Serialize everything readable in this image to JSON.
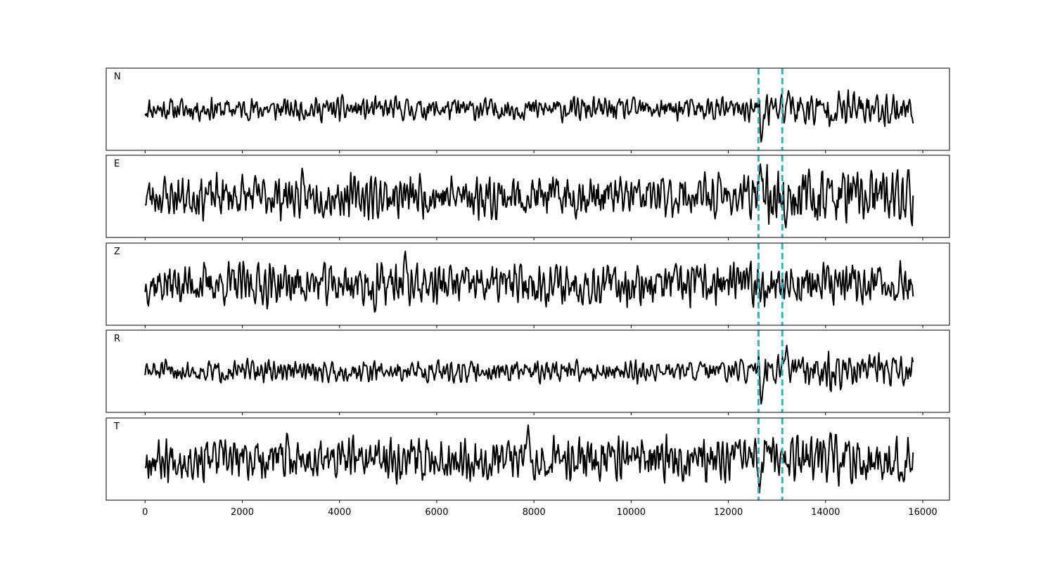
{
  "chart_data": {
    "type": "line",
    "title": "",
    "xlabel": "",
    "ylabel": "",
    "xlim": [
      -800,
      16550
    ],
    "x_ticks": [
      0,
      2000,
      4000,
      6000,
      8000,
      10000,
      12000,
      14000,
      16000
    ],
    "x_tick_labels": [
      "0",
      "2000",
      "4000",
      "6000",
      "8000",
      "10000",
      "12000",
      "14000",
      "16000"
    ],
    "x_range": [
      0,
      15800
    ],
    "trace_color": "#000000",
    "marker_color": "#17becf",
    "markers": [
      12620,
      13110
    ],
    "shared_x_axis": true,
    "y_ticks_shown": false,
    "panels": [
      {
        "label": "N",
        "seed": 11,
        "amp": 0.3,
        "spike": [
          {
            "x": 12680,
            "v": -1.0
          },
          {
            "x": 13240,
            "v": 0.55
          }
        ],
        "late_boost": 1.5
      },
      {
        "label": "E",
        "seed": 23,
        "amp": 0.55,
        "spike": [
          {
            "x": 12660,
            "v": 0.95
          },
          {
            "x": 13180,
            "v": -0.95
          }
        ],
        "late_boost": 1.3
      },
      {
        "label": "Z",
        "seed": 37,
        "amp": 0.55,
        "spike": [
          {
            "x": 5350,
            "v": 1.0
          },
          {
            "x": 4730,
            "v": -0.9
          }
        ],
        "late_boost": 1.0
      },
      {
        "label": "R",
        "seed": 51,
        "amp": 0.28,
        "spike": [
          {
            "x": 12680,
            "v": -1.0
          },
          {
            "x": 13200,
            "v": 0.75
          }
        ],
        "late_boost": 1.6
      },
      {
        "label": "T",
        "seed": 67,
        "amp": 0.55,
        "spike": [
          {
            "x": 7880,
            "v": 1.0
          },
          {
            "x": 12640,
            "v": -0.95
          }
        ],
        "late_boost": 1.1
      }
    ]
  }
}
